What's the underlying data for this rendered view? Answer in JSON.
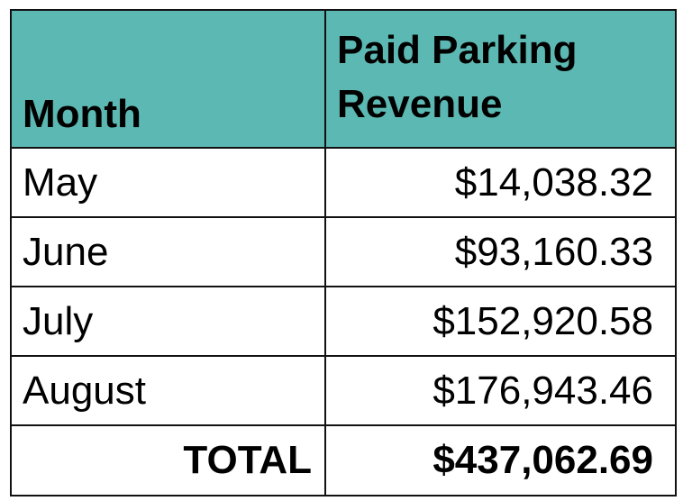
{
  "table": {
    "header_color": "#5cb8b2",
    "columns": {
      "month": "Month",
      "revenue_line1": "Paid Parking",
      "revenue_line2": "Revenue"
    },
    "rows": [
      {
        "month": "May",
        "revenue": "$14,038.32"
      },
      {
        "month": "June",
        "revenue": "$93,160.33"
      },
      {
        "month": "July",
        "revenue": "$152,920.58"
      },
      {
        "month": "August",
        "revenue": "$176,943.46"
      }
    ],
    "total": {
      "label": "TOTAL",
      "value": "$437,062.69"
    }
  }
}
